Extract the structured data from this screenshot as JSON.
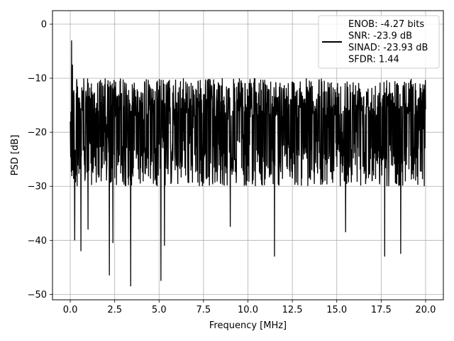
{
  "chart_data": {
    "type": "line",
    "xlabel": "Frequency [MHz]",
    "ylabel": "PSD [dB]",
    "xlim": [
      -1.0,
      21.0
    ],
    "ylim": [
      -51.0,
      2.5
    ],
    "xticks": [
      0.0,
      2.5,
      5.0,
      7.5,
      10.0,
      12.5,
      15.0,
      17.5,
      20.0
    ],
    "xtick_labels": [
      "0.0",
      "2.5",
      "5.0",
      "7.5",
      "10.0",
      "12.5",
      "15.0",
      "17.5",
      "20.0"
    ],
    "yticks": [
      0,
      -10,
      -20,
      -30,
      -40,
      -50
    ],
    "ytick_labels": [
      "0",
      "−10",
      "−20",
      "−30",
      "−40",
      "−50"
    ],
    "grid": true,
    "legend_position": "top-right",
    "legend_entries": [
      "ENOB: -4.27 bits",
      "SNR: -23.9 dB",
      "SINAD: -23.93 dB",
      "SFDR: 1.44"
    ],
    "series": [
      {
        "color": "#000000",
        "x_range": [
          0.0,
          20.0
        ],
        "noise_floor_band": [
          -30,
          -10
        ],
        "peaks": [
          {
            "x": 0.0,
            "y": 0.0
          },
          {
            "x": 0.08,
            "y": -3.0
          },
          {
            "x": 0.12,
            "y": -7.5
          }
        ],
        "dips": [
          {
            "x": 0.25,
            "y": -40.0
          },
          {
            "x": 0.6,
            "y": -42.0
          },
          {
            "x": 1.0,
            "y": -38.0
          },
          {
            "x": 2.2,
            "y": -46.5
          },
          {
            "x": 2.4,
            "y": -40.5
          },
          {
            "x": 3.4,
            "y": -48.5
          },
          {
            "x": 5.1,
            "y": -47.5
          },
          {
            "x": 5.3,
            "y": -41.0
          },
          {
            "x": 9.0,
            "y": -37.5
          },
          {
            "x": 11.5,
            "y": -43.0
          },
          {
            "x": 15.5,
            "y": -38.5
          },
          {
            "x": 17.7,
            "y": -43.0
          },
          {
            "x": 18.6,
            "y": -42.5
          }
        ]
      }
    ]
  }
}
